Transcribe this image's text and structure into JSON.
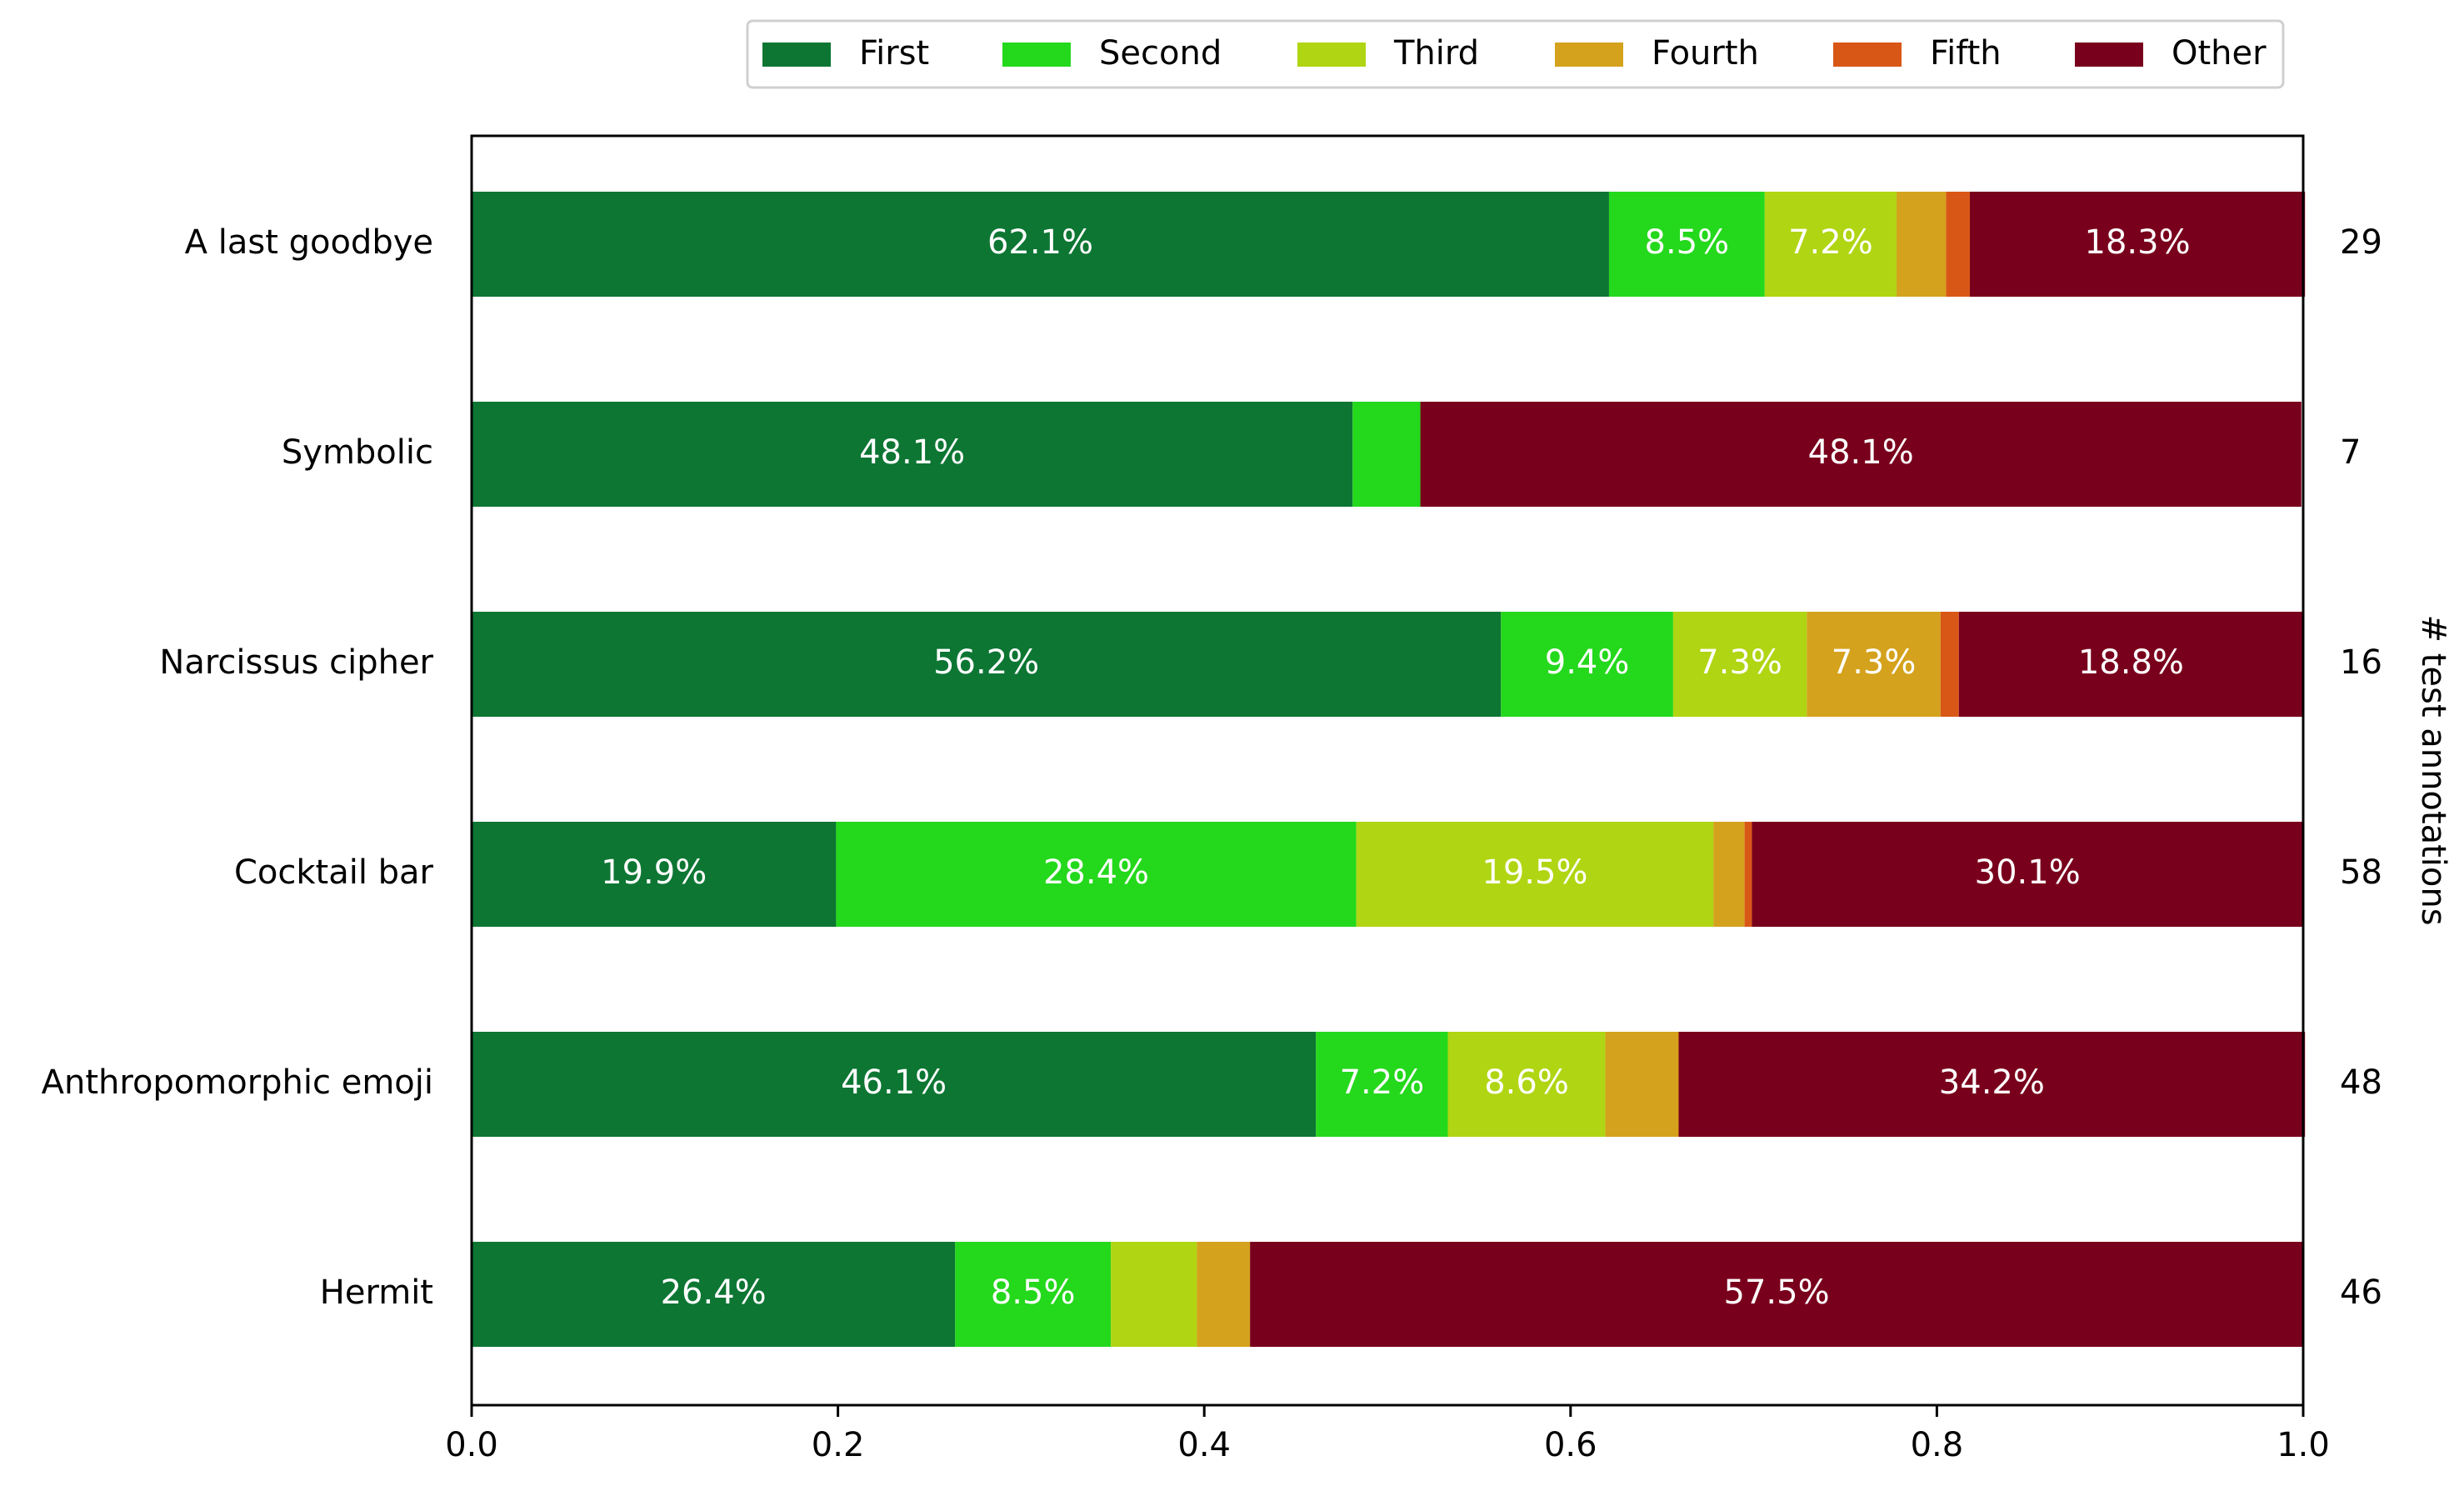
{
  "chart_data": {
    "type": "bar",
    "orientation": "horizontal",
    "stacked": true,
    "categories": [
      "A last goodbye",
      "Symbolic",
      "Narcissus cipher",
      "Cocktail bar",
      "Anthropomorphic emoji",
      "Hermit"
    ],
    "series": [
      {
        "name": "First",
        "color": "#0d7633",
        "values": [
          0.621,
          0.481,
          0.562,
          0.199,
          0.461,
          0.264
        ]
      },
      {
        "name": "Second",
        "color": "#24d81c",
        "values": [
          0.085,
          0.037,
          0.094,
          0.284,
          0.072,
          0.085
        ]
      },
      {
        "name": "Third",
        "color": "#b0d512",
        "values": [
          0.072,
          0.0,
          0.073,
          0.195,
          0.086,
          0.047
        ]
      },
      {
        "name": "Fourth",
        "color": "#d4a21c",
        "values": [
          0.027,
          0.0,
          0.073,
          0.017,
          0.04,
          0.029
        ]
      },
      {
        "name": "Fifth",
        "color": "#d95716",
        "values": [
          0.013,
          0.0,
          0.01,
          0.004,
          0.0,
          0.0
        ]
      },
      {
        "name": "Other",
        "color": "#79001c",
        "values": [
          0.183,
          0.481,
          0.188,
          0.301,
          0.342,
          0.575
        ]
      }
    ],
    "segment_labels": [
      [
        "62.1%",
        "8.5%",
        "7.2%",
        "",
        "",
        "18.3%"
      ],
      [
        "48.1%",
        "",
        "",
        "",
        "",
        "48.1%"
      ],
      [
        "56.2%",
        "9.4%",
        "7.3%",
        "7.3%",
        "",
        "18.8%"
      ],
      [
        "19.9%",
        "28.4%",
        "19.5%",
        "",
        "",
        "30.1%"
      ],
      [
        "46.1%",
        "7.2%",
        "8.6%",
        "",
        "",
        "34.2%"
      ],
      [
        "26.4%",
        "8.5%",
        "",
        "",
        "",
        "57.5%"
      ]
    ],
    "counts": [
      "29",
      "7",
      "16",
      "58",
      "48",
      "46"
    ],
    "right_ylabel": "# test annotations",
    "xlim": [
      0,
      1
    ],
    "xticks": [
      "0.0",
      "0.2",
      "0.4",
      "0.6",
      "0.8",
      "1.0"
    ],
    "legend": {
      "placement": "top-center",
      "entries": [
        "First",
        "Second",
        "Third",
        "Fourth",
        "Fifth",
        "Other"
      ]
    },
    "grid": false
  }
}
